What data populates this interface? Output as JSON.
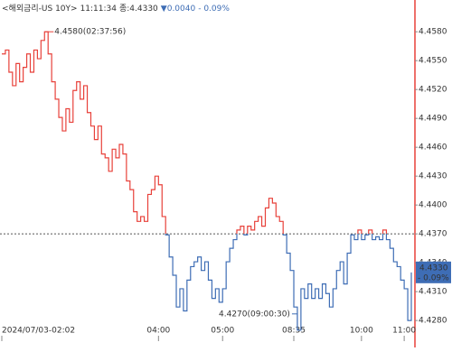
{
  "chart_data": {
    "type": "line",
    "header": {
      "title": "<해외금리-US 10Y>",
      "time": "11:11:34",
      "close": "종:4.4330",
      "change": "▼0.0040",
      "change_pct": "- 0.09%"
    },
    "values": [
      4.4557,
      4.4561,
      4.4538,
      4.4524,
      4.4547,
      4.4528,
      4.4543,
      4.4557,
      4.4538,
      4.4561,
      4.4552,
      4.4571,
      4.458,
      4.4557,
      4.4528,
      4.451,
      4.4491,
      4.4477,
      4.45,
      4.4486,
      4.4519,
      4.4528,
      4.451,
      4.4524,
      4.4496,
      4.4482,
      4.4468,
      4.4482,
      4.4453,
      4.4449,
      4.4435,
      4.4458,
      4.4449,
      4.4463,
      4.4453,
      4.4425,
      4.4416,
      4.4393,
      4.4383,
      4.4388,
      4.4383,
      4.4411,
      4.4416,
      4.443,
      4.4421,
      4.4388,
      4.4369,
      4.4346,
      4.4327,
      4.4294,
      4.4313,
      4.429,
      4.4322,
      4.4336,
      4.4341,
      4.4346,
      4.4332,
      4.4341,
      4.4322,
      4.4303,
      4.4313,
      4.4299,
      4.4313,
      4.4341,
      4.4355,
      4.4364,
      4.4374,
      4.4378,
      4.4369,
      4.4378,
      4.4374,
      4.4383,
      4.4388,
      4.4378,
      4.4397,
      4.4407,
      4.4402,
      4.4388,
      4.4383,
      4.4369,
      4.435,
      4.4332,
      4.4294,
      4.427,
      4.4313,
      4.4303,
      4.4318,
      4.4303,
      4.4313,
      4.4303,
      4.4318,
      4.4308,
      4.4294,
      4.4313,
      4.4332,
      4.4341,
      4.4318,
      4.435,
      4.4369,
      4.4364,
      4.4374,
      4.4364,
      4.4369,
      4.4374,
      4.4364,
      4.4367,
      4.4364,
      4.4374,
      4.4364,
      4.4355,
      4.4341,
      4.4336,
      4.4322,
      4.4313,
      4.428,
      4.433
    ],
    "reference": 4.437,
    "up_color": "#e8413a",
    "down_color": "#3e6db5",
    "xlim": [
      0,
      115
    ],
    "xticks": [
      {
        "value": 0,
        "label": "2024/07/03-02:02"
      },
      {
        "value": 44,
        "label": "04:00"
      },
      {
        "value": 62,
        "label": "05:00"
      },
      {
        "value": 82,
        "label": "08:35"
      },
      {
        "value": 101,
        "label": "10:00"
      },
      {
        "value": 113,
        "label": "11:00"
      }
    ],
    "ylim": [
      4.4252,
      4.4613
    ],
    "yticks": [
      {
        "value": 4.458,
        "label": "4.4580"
      },
      {
        "value": 4.455,
        "label": "4.4550"
      },
      {
        "value": 4.452,
        "label": "4.4520"
      },
      {
        "value": 4.449,
        "label": "4.4490"
      },
      {
        "value": 4.446,
        "label": "4.4460"
      },
      {
        "value": 4.443,
        "label": "4.4430"
      },
      {
        "value": 4.44,
        "label": "4.4400"
      },
      {
        "value": 4.437,
        "label": "4.4370"
      },
      {
        "value": 4.434,
        "label": "4.4340"
      },
      {
        "value": 4.431,
        "label": "4.4310"
      },
      {
        "value": 4.428,
        "label": "4.4280"
      }
    ],
    "max_label": "4.4580(02:37:56)",
    "min_label": "4.4270(09:00:30)",
    "current_label": "4.4330",
    "current_change_label": "- 0.09%"
  }
}
